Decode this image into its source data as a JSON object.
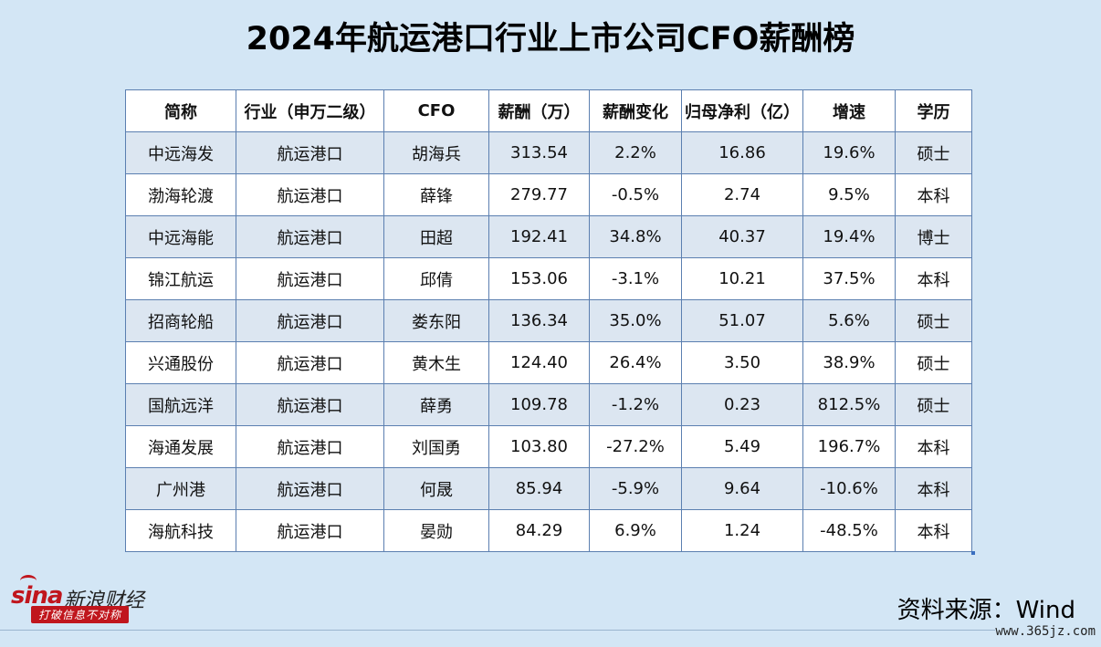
{
  "title": "2024年航运港口行业上市公司CFO薪酬榜",
  "table": {
    "headers": [
      "简称",
      "行业（申万二级）",
      "CFO",
      "薪酬（万）",
      "薪酬变化",
      "归母净利（亿）",
      "增速",
      "学历"
    ],
    "rows": [
      [
        "中远海发",
        "航运港口",
        "胡海兵",
        "313.54",
        "2.2%",
        "16.86",
        "19.6%",
        "硕士"
      ],
      [
        "渤海轮渡",
        "航运港口",
        "薛锋",
        "279.77",
        "-0.5%",
        "2.74",
        "9.5%",
        "本科"
      ],
      [
        "中远海能",
        "航运港口",
        "田超",
        "192.41",
        "34.8%",
        "40.37",
        "19.4%",
        "博士"
      ],
      [
        "锦江航运",
        "航运港口",
        "邱倩",
        "153.06",
        "-3.1%",
        "10.21",
        "37.5%",
        "本科"
      ],
      [
        "招商轮船",
        "航运港口",
        "娄东阳",
        "136.34",
        "35.0%",
        "51.07",
        "5.6%",
        "硕士"
      ],
      [
        "兴通股份",
        "航运港口",
        "黄木生",
        "124.40",
        "26.4%",
        "3.50",
        "38.9%",
        "硕士"
      ],
      [
        "国航远洋",
        "航运港口",
        "薛勇",
        "109.78",
        "-1.2%",
        "0.23",
        "812.5%",
        "硕士"
      ],
      [
        "海通发展",
        "航运港口",
        "刘国勇",
        "103.80",
        "-27.2%",
        "5.49",
        "196.7%",
        "本科"
      ],
      [
        "广州港",
        "航运港口",
        "何晟",
        "85.94",
        "-5.9%",
        "9.64",
        "-10.6%",
        "本科"
      ],
      [
        "海航科技",
        "航运港口",
        "晏勋",
        "84.29",
        "6.9%",
        "1.24",
        "-48.5%",
        "本科"
      ]
    ]
  },
  "logo": {
    "brand": "sina",
    "name_cn": "新浪财经",
    "slogan": "打破信息不对称"
  },
  "source": "资料来源：Wind",
  "watermark": "www.365jz.com",
  "colors": {
    "background": "#d3e6f5",
    "row_alt": "#dce6f1",
    "border": "#5b7fb0",
    "brand_red": "#c0161d"
  }
}
